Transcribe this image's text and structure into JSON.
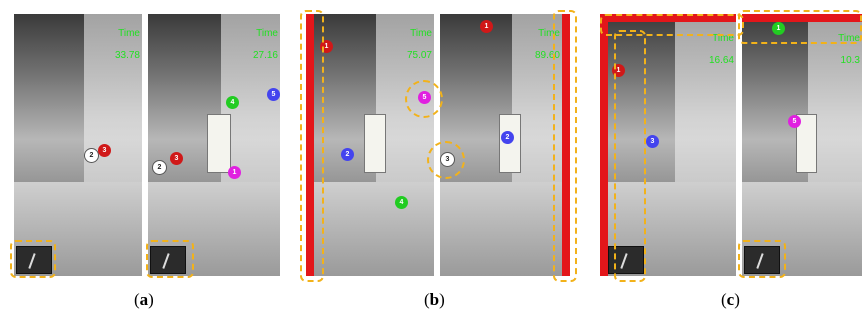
{
  "panels": [
    {
      "time_label": "Time",
      "time_value": "33.78"
    },
    {
      "time_label": "Time",
      "time_value": "27.16"
    },
    {
      "time_label": "Time",
      "time_value": "75.07"
    },
    {
      "time_label": "Time",
      "time_value": "89.60"
    },
    {
      "time_label": "Time",
      "time_value": "16.64"
    },
    {
      "time_label": "Time",
      "time_value": "10.3"
    }
  ],
  "markers": {
    "a1": "2",
    "a2": "3",
    "b1": "2",
    "b2": "3",
    "b3": "4",
    "b4": "5",
    "b5": "1",
    "c1": "1",
    "c2": "5",
    "c3": "2",
    "c4": "4",
    "d1": "1",
    "d2": "2",
    "d3": "3",
    "e1": "1",
    "e2": "3",
    "f1": "1",
    "f2": "5"
  },
  "captions": {
    "a": "a",
    "b": "b",
    "c": "c"
  },
  "colors": {
    "highlight": "#f2b21a",
    "time_text": "#22e022",
    "red_bar": "#e3161a"
  }
}
